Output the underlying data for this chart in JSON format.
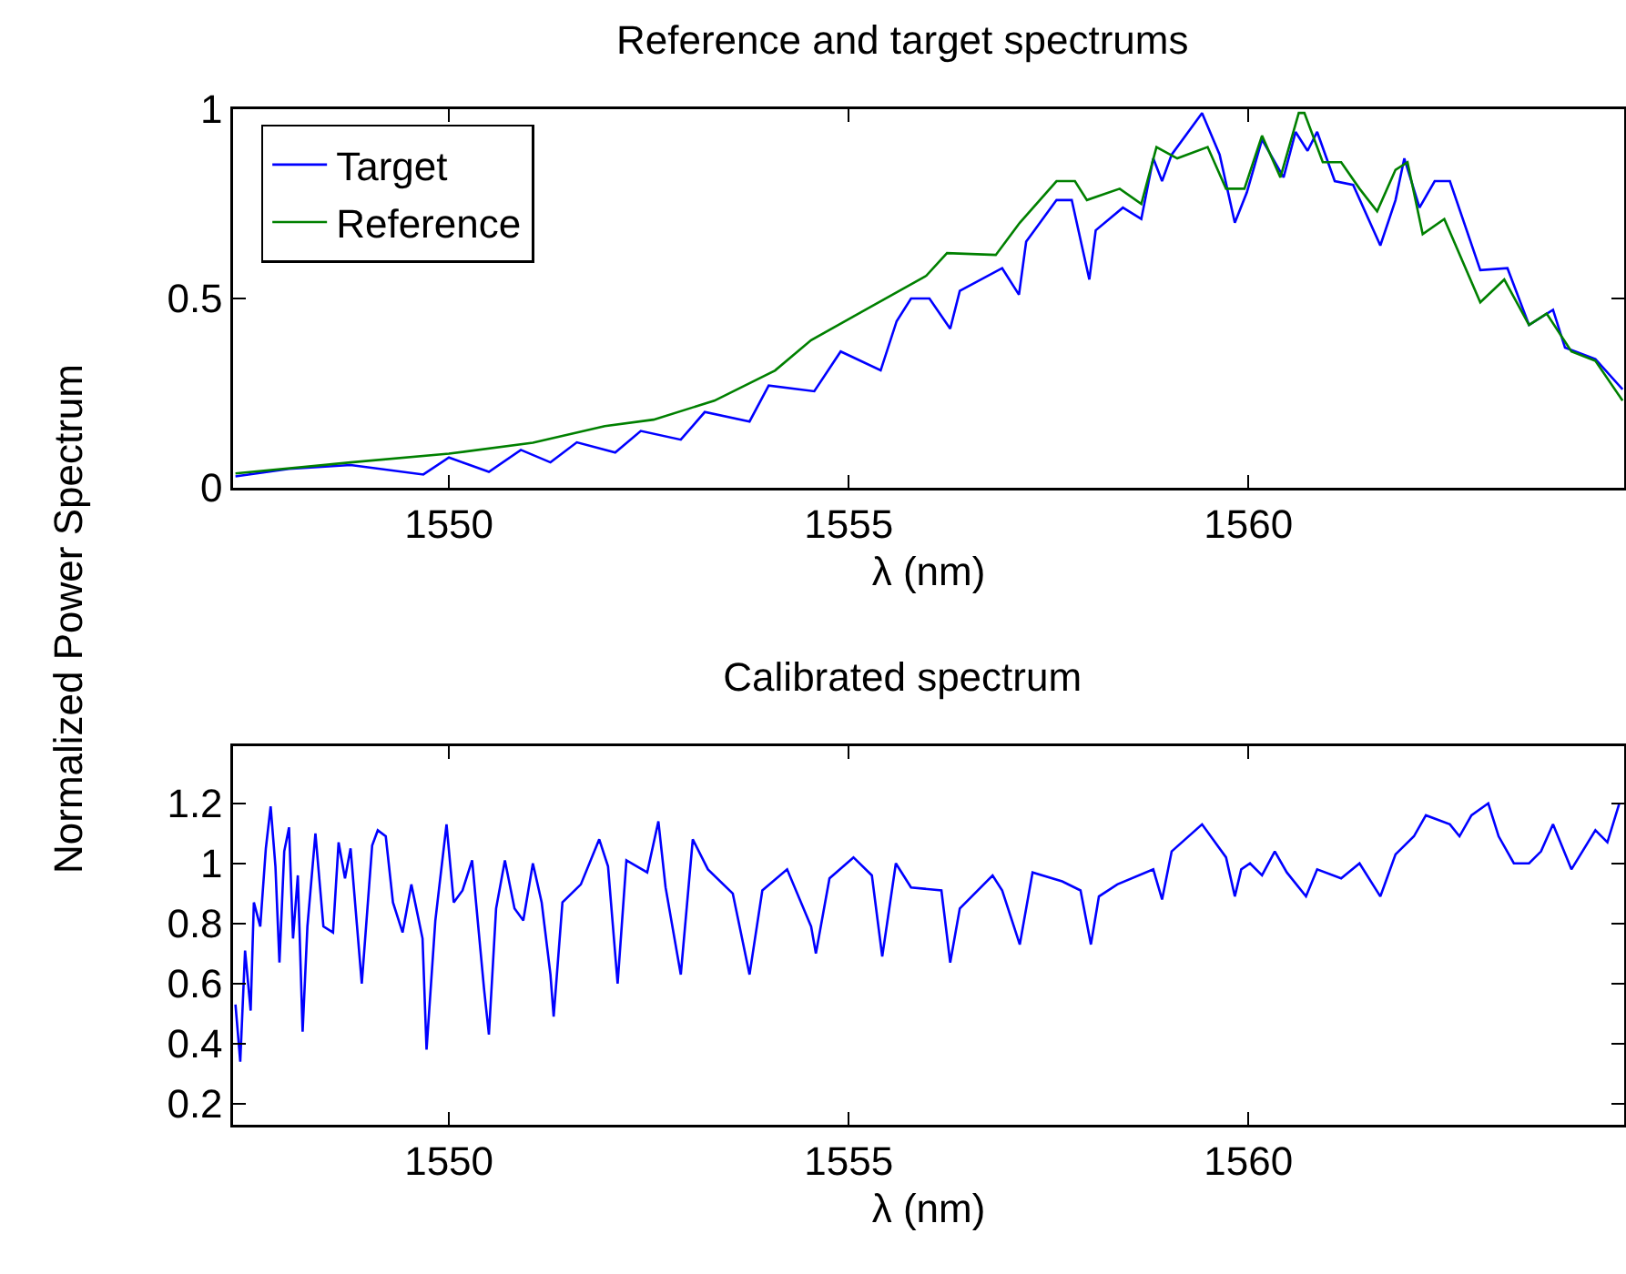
{
  "chart_data": [
    {
      "type": "line",
      "title": "Reference and target spectrums",
      "xlabel": "λ (nm)",
      "ylabel": "Normalized Power Spectrum",
      "xlim": [
        1547.3,
        1564.7
      ],
      "xticks": [
        1550,
        1555,
        1560
      ],
      "ylim": [
        0,
        1
      ],
      "yticks": [
        0,
        0.5,
        1
      ],
      "grid": false,
      "legend": "top left",
      "marker": "none",
      "line_style": "solid",
      "series": [
        {
          "name": "Target",
          "color": "#0000ff",
          "x": [
            1547.33,
            1548.0,
            1548.77,
            1549.68,
            1550.0,
            1550.5,
            1550.9,
            1551.27,
            1551.6,
            1552.08,
            1552.4,
            1552.9,
            1553.2,
            1553.76,
            1554.0,
            1554.57,
            1554.9,
            1555.4,
            1555.6,
            1555.78,
            1556.01,
            1556.27,
            1556.39,
            1556.92,
            1557.13,
            1557.22,
            1557.6,
            1557.79,
            1558.01,
            1558.09,
            1558.43,
            1558.66,
            1558.81,
            1558.92,
            1559.04,
            1559.42,
            1559.64,
            1559.83,
            1559.98,
            1560.17,
            1560.44,
            1560.59,
            1560.74,
            1560.86,
            1561.08,
            1561.31,
            1561.65,
            1561.84,
            1561.95,
            1562.14,
            1562.33,
            1562.52,
            1562.9,
            1563.24,
            1563.51,
            1563.81,
            1563.96,
            1564.34,
            1564.68
          ],
          "values": [
            0.03,
            0.05,
            0.06,
            0.035,
            0.08,
            0.042,
            0.1,
            0.067,
            0.12,
            0.093,
            0.15,
            0.127,
            0.2,
            0.175,
            0.27,
            0.255,
            0.36,
            0.31,
            0.44,
            0.5,
            0.5,
            0.42,
            0.52,
            0.58,
            0.51,
            0.65,
            0.76,
            0.76,
            0.55,
            0.68,
            0.74,
            0.71,
            0.87,
            0.81,
            0.88,
            0.99,
            0.88,
            0.7,
            0.78,
            0.92,
            0.82,
            0.94,
            0.89,
            0.94,
            0.81,
            0.8,
            0.64,
            0.76,
            0.87,
            0.74,
            0.81,
            0.81,
            0.575,
            0.58,
            0.43,
            0.47,
            0.37,
            0.34,
            0.26
          ]
        },
        {
          "name": "Reference",
          "color": "#008000",
          "x": [
            1547.33,
            1548.77,
            1550.0,
            1551.05,
            1551.95,
            1552.56,
            1553.32,
            1554.08,
            1554.53,
            1555.21,
            1555.97,
            1556.23,
            1556.84,
            1557.14,
            1557.6,
            1557.83,
            1557.98,
            1558.39,
            1558.66,
            1558.85,
            1559.11,
            1559.49,
            1559.72,
            1559.95,
            1560.17,
            1560.4,
            1560.63,
            1560.7,
            1560.93,
            1561.16,
            1561.39,
            1561.61,
            1561.84,
            1561.99,
            1562.18,
            1562.45,
            1562.9,
            1563.2,
            1563.51,
            1563.73,
            1564.04,
            1564.34,
            1564.68
          ],
          "values": [
            0.038,
            0.067,
            0.09,
            0.119,
            0.163,
            0.18,
            0.23,
            0.31,
            0.39,
            0.47,
            0.56,
            0.62,
            0.615,
            0.7,
            0.81,
            0.81,
            0.76,
            0.79,
            0.75,
            0.9,
            0.87,
            0.9,
            0.79,
            0.79,
            0.93,
            0.82,
            0.99,
            0.99,
            0.86,
            0.86,
            0.79,
            0.73,
            0.84,
            0.86,
            0.67,
            0.71,
            0.49,
            0.55,
            0.43,
            0.46,
            0.36,
            0.335,
            0.23
          ]
        }
      ]
    },
    {
      "type": "line",
      "title": "Calibrated spectrum",
      "xlabel": "λ (nm)",
      "xlim": [
        1547.3,
        1564.7
      ],
      "xticks": [
        1550,
        1555,
        1560
      ],
      "ylim": [
        0.13,
        1.39
      ],
      "yticks": [
        0.2,
        0.4,
        0.6,
        0.8,
        1,
        1.2
      ],
      "grid": false,
      "legend": false,
      "marker": "none",
      "line_style": "solid",
      "series": [
        {
          "color": "#0000ff",
          "x": [
            1547.33,
            1547.39,
            1547.45,
            1547.52,
            1547.56,
            1547.64,
            1547.71,
            1547.77,
            1547.83,
            1547.88,
            1547.94,
            1548.0,
            1548.05,
            1548.11,
            1548.17,
            1548.23,
            1548.33,
            1548.43,
            1548.55,
            1548.62,
            1548.7,
            1548.77,
            1548.91,
            1549.04,
            1549.11,
            1549.21,
            1549.3,
            1549.42,
            1549.53,
            1549.67,
            1549.72,
            1549.83,
            1549.97,
            1550.06,
            1550.17,
            1550.29,
            1550.44,
            1550.5,
            1550.59,
            1550.7,
            1550.82,
            1550.93,
            1551.05,
            1551.16,
            1551.27,
            1551.31,
            1551.42,
            1551.65,
            1551.88,
            1551.99,
            1552.11,
            1552.22,
            1552.48,
            1552.62,
            1552.71,
            1552.9,
            1553.05,
            1553.24,
            1553.55,
            1553.76,
            1553.92,
            1554.23,
            1554.53,
            1554.59,
            1554.76,
            1555.06,
            1555.29,
            1555.42,
            1555.59,
            1555.78,
            1556.16,
            1556.27,
            1556.39,
            1556.8,
            1556.92,
            1557.14,
            1557.3,
            1557.67,
            1557.9,
            1558.03,
            1558.13,
            1558.36,
            1558.81,
            1558.92,
            1559.04,
            1559.42,
            1559.72,
            1559.83,
            1559.91,
            1560.02,
            1560.17,
            1560.33,
            1560.48,
            1560.72,
            1560.86,
            1561.16,
            1561.39,
            1561.65,
            1561.84,
            1562.07,
            1562.22,
            1562.52,
            1562.64,
            1562.79,
            1563.0,
            1563.13,
            1563.32,
            1563.51,
            1563.66,
            1563.81,
            1564.04,
            1564.34,
            1564.49,
            1564.64
          ],
          "values": [
            0.53,
            0.34,
            0.71,
            0.51,
            0.87,
            0.79,
            1.05,
            1.19,
            0.99,
            0.67,
            1.04,
            1.12,
            0.75,
            0.96,
            0.44,
            0.79,
            1.1,
            0.79,
            0.77,
            1.07,
            0.95,
            1.05,
            0.6,
            1.06,
            1.11,
            1.09,
            0.87,
            0.77,
            0.93,
            0.75,
            0.38,
            0.81,
            1.13,
            0.87,
            0.91,
            1.01,
            0.58,
            0.43,
            0.85,
            1.01,
            0.85,
            0.81,
            1.0,
            0.87,
            0.63,
            0.49,
            0.87,
            0.93,
            1.08,
            0.99,
            0.6,
            1.01,
            0.97,
            1.14,
            0.92,
            0.63,
            1.08,
            0.98,
            0.9,
            0.63,
            0.91,
            0.98,
            0.79,
            0.7,
            0.95,
            1.02,
            0.96,
            0.69,
            1.0,
            0.92,
            0.91,
            0.67,
            0.85,
            0.96,
            0.91,
            0.73,
            0.97,
            0.94,
            0.91,
            0.73,
            0.89,
            0.93,
            0.98,
            0.88,
            1.04,
            1.13,
            1.02,
            0.89,
            0.98,
            1.0,
            0.96,
            1.04,
            0.97,
            0.89,
            0.98,
            0.95,
            1.0,
            0.89,
            1.03,
            1.09,
            1.16,
            1.13,
            1.09,
            1.16,
            1.2,
            1.09,
            1.0,
            1.0,
            1.04,
            1.13,
            0.98,
            1.11,
            1.07,
            1.2
          ]
        }
      ]
    }
  ]
}
